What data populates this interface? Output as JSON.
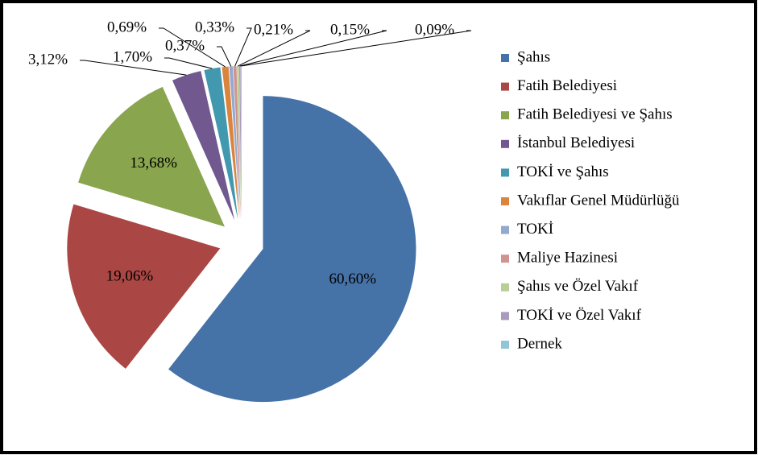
{
  "chart_data": {
    "type": "pie",
    "categories": [
      "Şahıs",
      "Fatih Belediyesi",
      "Fatih Belediyesi ve Şahıs",
      "İstanbul Belediyesi",
      "TOKİ ve Şahıs",
      "Vakıflar Genel Müdürlüğü",
      "TOKİ",
      "Maliye Hazinesi",
      "Şahıs ve Özel Vakıf",
      "TOKİ ve Özel Vakıf",
      "Dernek"
    ],
    "values": [
      60.6,
      19.06,
      13.68,
      3.12,
      1.7,
      0.69,
      0.37,
      0.33,
      0.21,
      0.15,
      0.09
    ],
    "value_labels": [
      "60,60%",
      "19,06%",
      "13,68%",
      "3,12%",
      "1,70%",
      "0,69%",
      "0,37%",
      "0,33%",
      "0,21%",
      "0,15%",
      "0,09%"
    ],
    "colors": [
      "#4572A7",
      "#AA4643",
      "#89A54E",
      "#71588F",
      "#4198AF",
      "#DB843D",
      "#93A9CF",
      "#D19392",
      "#B9CD96",
      "#A99BBD",
      "#92C5D8"
    ],
    "legend": "right"
  }
}
